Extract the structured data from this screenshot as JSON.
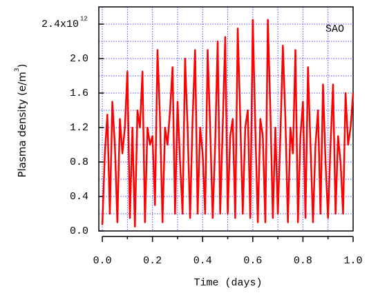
{
  "chart_data": {
    "type": "line",
    "x_label": "Time (days)",
    "y_label": "Plasma density (e/m",
    "y_label_exponent": "3",
    "y_label_end": ")",
    "annotation": "SAO",
    "ytick_exponent": "12",
    "color": "#ff0000",
    "grid_color": "#4a4aff",
    "grid": true,
    "xlim": [
      -0.014,
      1.0
    ],
    "ylim": [
      0,
      2.6
    ],
    "xticks": [
      {
        "value": 0,
        "label": "0.0"
      },
      0.2,
      0.4,
      0.6,
      0.8,
      {
        "value": 1,
        "label": "1.0"
      }
    ],
    "xminor_ticks": [
      0.1,
      0.3,
      0.5,
      0.7,
      0.9
    ],
    "yticks": [
      {
        "value": 0,
        "label": "0.0"
      },
      0.4,
      0.8,
      1.2,
      1.6,
      {
        "value": 2,
        "label": "2.0"
      },
      {
        "value": 2.4,
        "label": "2.4x10"
      }
    ],
    "yminor_ticks": [
      0.2,
      0.6,
      1.0,
      1.4,
      1.8,
      2.2
    ],
    "x": [
      0.0,
      0.01,
      0.02,
      0.03,
      0.04,
      0.05,
      0.06,
      0.07,
      0.08,
      0.09,
      0.1,
      0.11,
      0.12,
      0.13,
      0.14,
      0.15,
      0.16,
      0.17,
      0.18,
      0.19,
      0.2,
      0.21,
      0.22,
      0.23,
      0.24,
      0.25,
      0.26,
      0.27,
      0.28,
      0.29,
      0.3,
      0.31,
      0.32,
      0.33,
      0.34,
      0.35,
      0.36,
      0.37,
      0.38,
      0.39,
      0.4,
      0.41,
      0.42,
      0.43,
      0.44,
      0.45,
      0.46,
      0.47,
      0.48,
      0.49,
      0.5,
      0.51,
      0.52,
      0.53,
      0.54,
      0.55,
      0.56,
      0.57,
      0.58,
      0.59,
      0.6,
      0.61,
      0.62,
      0.63,
      0.64,
      0.65,
      0.66,
      0.67,
      0.68,
      0.69,
      0.7,
      0.71,
      0.72,
      0.73,
      0.74,
      0.75,
      0.76,
      0.77,
      0.78,
      0.79,
      0.8,
      0.81,
      0.82,
      0.83,
      0.84,
      0.85,
      0.86,
      0.87,
      0.88,
      0.89,
      0.9,
      0.91,
      0.92,
      0.93,
      0.94,
      0.95,
      0.96,
      0.97,
      0.98,
      0.99,
      1.0
    ],
    "values": [
      0.07,
      0.9,
      1.35,
      0.2,
      1.5,
      1.0,
      0.1,
      1.3,
      0.9,
      1.2,
      1.85,
      0.15,
      1.2,
      0.05,
      1.4,
      1.2,
      1.85,
      0.1,
      1.2,
      1.0,
      1.1,
      0.3,
      2.1,
      1.3,
      0.1,
      1.2,
      1.0,
      1.4,
      1.9,
      0.2,
      1.5,
      0.8,
      0.2,
      2.0,
      1.2,
      0.15,
      1.3,
      2.1,
      0.2,
      1.2,
      0.9,
      0.2,
      2.1,
      1.2,
      0.15,
      1.0,
      2.2,
      0.2,
      1.2,
      2.25,
      0.2,
      1.1,
      1.3,
      0.15,
      2.35,
      1.3,
      0.2,
      1.2,
      1.4,
      0.15,
      2.45,
      1.2,
      0.1,
      1.3,
      1.1,
      0.1,
      2.45,
      1.4,
      0.15,
      1.2,
      0.2,
      1.1,
      2.15,
      1.3,
      0.1,
      1.2,
      0.9,
      2.1,
      0.1,
      1.1,
      1.5,
      0.15,
      1.9,
      1.0,
      0.1,
      1.0,
      1.4,
      0.2,
      1.7,
      0.8,
      0.15,
      1.0,
      1.7,
      0.2,
      1.1,
      0.8,
      0.2,
      1.6,
      1.0,
      1.2,
      1.6
    ]
  }
}
